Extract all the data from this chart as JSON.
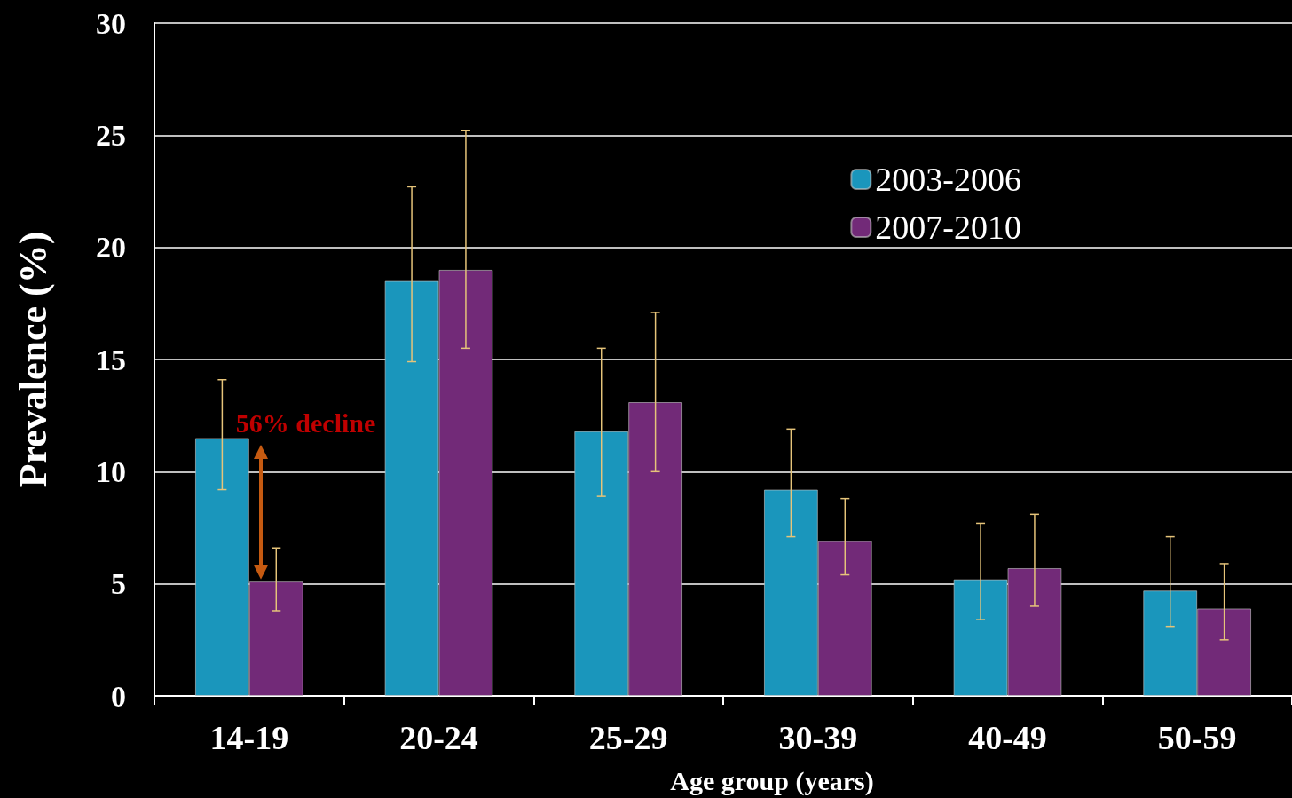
{
  "chart_data": {
    "type": "bar",
    "xlabel": "Age group (years)",
    "ylabel": "Prevalence (%)",
    "categories": [
      "14-19",
      "20-24",
      "25-29",
      "30-39",
      "40-49",
      "50-59"
    ],
    "series": [
      {
        "name": "2003-2006",
        "color": "#1a96bc",
        "values": [
          11.5,
          18.5,
          11.8,
          9.2,
          5.2,
          4.7
        ],
        "errors": [
          [
            9.2,
            14.1
          ],
          [
            14.9,
            22.7
          ],
          [
            8.9,
            15.5
          ],
          [
            7.1,
            11.9
          ],
          [
            3.4,
            7.7
          ],
          [
            3.1,
            7.1
          ]
        ]
      },
      {
        "name": "2007-2010",
        "color": "#722a78",
        "values": [
          5.1,
          19.0,
          13.1,
          6.9,
          5.7,
          3.9
        ],
        "errors": [
          [
            3.8,
            6.6
          ],
          [
            15.5,
            25.2
          ],
          [
            10.0,
            17.1
          ],
          [
            5.4,
            8.8
          ],
          [
            4.0,
            8.1
          ],
          [
            2.5,
            5.9
          ]
        ]
      }
    ],
    "ylim": [
      0,
      30
    ],
    "yticks": [
      0,
      5,
      10,
      15,
      20,
      25,
      30
    ],
    "grid": "y",
    "legend": "top right",
    "annotations": [
      {
        "text": "56% decline",
        "x": "14-19",
        "y": 11.5
      }
    ]
  }
}
